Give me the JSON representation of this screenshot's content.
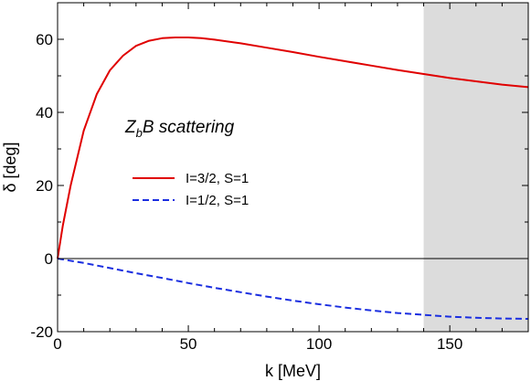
{
  "chart_data": {
    "type": "line",
    "title": "",
    "xlabel": "k [MeV]",
    "ylabel": "δ [deg]",
    "xlim": [
      0,
      180
    ],
    "ylim": [
      -20,
      70
    ],
    "x_ticks": [
      0,
      50,
      100,
      150
    ],
    "y_ticks": [
      -20,
      0,
      20,
      40,
      60
    ],
    "x_tick_labels": [
      "0",
      "50",
      "100",
      "150"
    ],
    "y_tick_labels": [
      "-20",
      "0",
      "20",
      "40",
      "60"
    ],
    "grid": false,
    "shaded_region": {
      "x_from": 140,
      "x_to": 180,
      "color": "#dcdcdc"
    },
    "zero_line": true,
    "annotation": {
      "main": "Z",
      "subscript": "b",
      "rest": "B scattering"
    },
    "legend_position": "center-left",
    "series": [
      {
        "name": "I=3/2, S=1",
        "color": "#e00000",
        "style": "solid",
        "x": [
          0,
          2,
          5,
          10,
          15,
          20,
          25,
          30,
          35,
          40,
          45,
          50,
          55,
          60,
          70,
          80,
          90,
          100,
          110,
          120,
          130,
          140,
          150,
          160,
          170,
          180
        ],
        "y": [
          0,
          9,
          20,
          35,
          45,
          51.5,
          55.5,
          58.2,
          59.6,
          60.3,
          60.5,
          60.5,
          60.3,
          59.9,
          58.9,
          57.7,
          56.5,
          55.2,
          54,
          52.8,
          51.6,
          50.5,
          49.4,
          48.5,
          47.6,
          46.9
        ]
      },
      {
        "name": "I=1/2, S=1",
        "color": "#1a2ee0",
        "style": "dashed",
        "x": [
          0,
          10,
          20,
          30,
          40,
          50,
          60,
          70,
          80,
          90,
          100,
          110,
          120,
          130,
          140,
          150,
          160,
          170,
          180
        ],
        "y": [
          0,
          -1.2,
          -2.6,
          -4.0,
          -5.3,
          -6.7,
          -8.0,
          -9.2,
          -10.4,
          -11.5,
          -12.5,
          -13.4,
          -14.2,
          -14.9,
          -15.4,
          -15.9,
          -16.2,
          -16.4,
          -16.5
        ]
      }
    ]
  }
}
